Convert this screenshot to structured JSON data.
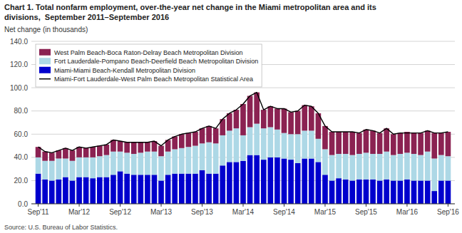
{
  "chart_data": {
    "type": "bar",
    "stacked": true,
    "grid": true,
    "legend": "upper left",
    "title": "Chart 1. Total nonfarm employment, over-the-year net change in the Miami metropolitan area and its",
    "subtitle": "divisions,  September 2011–September 2016",
    "y_label": "Net change (in thousands)",
    "annotations": [
      "Source: U.S. Bureau of Labor Statistics."
    ],
    "ylim": [
      0,
      140
    ],
    "yticks": [
      {
        "value": 0,
        "label": "0.0"
      },
      {
        "value": 20,
        "label": "20.0"
      },
      {
        "value": 40,
        "label": "40.0"
      },
      {
        "value": 60,
        "label": "60.0"
      },
      {
        "value": 80,
        "label": "80.0"
      },
      {
        "value": 100,
        "label": "100.0"
      },
      {
        "value": 120,
        "label": "120.0"
      },
      {
        "value": 140,
        "label": "140.0"
      }
    ],
    "categories": [
      "Sep'11",
      null,
      null,
      null,
      null,
      null,
      "Mar'12",
      null,
      null,
      null,
      null,
      null,
      "Sep'12",
      null,
      null,
      null,
      null,
      null,
      "Mar'13",
      null,
      null,
      null,
      null,
      null,
      "Sep'13",
      null,
      null,
      null,
      null,
      null,
      "Mar'14",
      null,
      null,
      null,
      null,
      null,
      "Sep'14",
      null,
      null,
      null,
      null,
      null,
      "Mar'15",
      null,
      null,
      null,
      null,
      null,
      "Sep'15",
      null,
      null,
      null,
      null,
      null,
      "Mar'16",
      null,
      null,
      null,
      null,
      null,
      "Sep'16"
    ],
    "series": [
      {
        "name": "Miami-Miami Beach-Kendall Metropolitan Division",
        "color": "#0000CD",
        "values": [
          26,
          21,
          20,
          21,
          23,
          20,
          23,
          23,
          22,
          23,
          23,
          25,
          28,
          26,
          25,
          25,
          25,
          25,
          20,
          25,
          26,
          26,
          26,
          26,
          29,
          26,
          26,
          33,
          36,
          36,
          37,
          42,
          42,
          38,
          40,
          40,
          39,
          38,
          35,
          39,
          39,
          36,
          25,
          20,
          22,
          21,
          20,
          21,
          21,
          21,
          20,
          21,
          20,
          20,
          21,
          20,
          20,
          20,
          11,
          20,
          20
        ]
      },
      {
        "name": "Fort Lauderdale-Pompano Beach-Deerfield Beach Metropolitan Division",
        "color": "#ADD8E6",
        "values": [
          14,
          16,
          17,
          18,
          16,
          17,
          17,
          17,
          18,
          18,
          19,
          20,
          17,
          18,
          18,
          19,
          20,
          20,
          21,
          20,
          21,
          22,
          23,
          24,
          23,
          27,
          26,
          26,
          27,
          29,
          22,
          24,
          27,
          27,
          26,
          24,
          22,
          22,
          25,
          24,
          24,
          20,
          22,
          22,
          21,
          22,
          22,
          22,
          23,
          22,
          23,
          24,
          22,
          23,
          23,
          23,
          22,
          25,
          28,
          22,
          21
        ]
      },
      {
        "name": "West Palm Beach-Boca Raton-Delray Beach Metropolitan Division",
        "color": "#8B2252",
        "values": [
          9,
          8,
          7,
          7,
          9,
          9,
          9,
          8,
          9,
          9,
          9,
          10,
          9,
          9,
          10,
          9,
          8,
          9,
          9,
          10,
          11,
          12,
          12,
          12,
          13,
          14,
          13,
          14,
          15,
          16,
          27,
          27,
          27,
          16,
          18,
          18,
          21,
          19,
          20,
          22,
          21,
          22,
          20,
          20,
          19,
          19,
          20,
          18,
          20,
          20,
          18,
          20,
          18,
          18,
          18,
          18,
          19,
          18,
          22,
          19,
          21
        ]
      },
      {
        "name": "Miami-Fort Lauderdale-West Palm Beach Metropolitan Statistical Area",
        "color": "#000000",
        "type": "line",
        "values": [
          49,
          45,
          44,
          46,
          48,
          46,
          49,
          48,
          49,
          50,
          51,
          55,
          54,
          53,
          53,
          53,
          53,
          54,
          50,
          55,
          58,
          60,
          61,
          62,
          65,
          67,
          65,
          73,
          78,
          81,
          86,
          93,
          96,
          81,
          84,
          82,
          82,
          79,
          80,
          85,
          84,
          78,
          67,
          62,
          62,
          62,
          62,
          61,
          64,
          63,
          61,
          65,
          60,
          61,
          61,
          61,
          61,
          63,
          61,
          61,
          62
        ]
      }
    ]
  }
}
